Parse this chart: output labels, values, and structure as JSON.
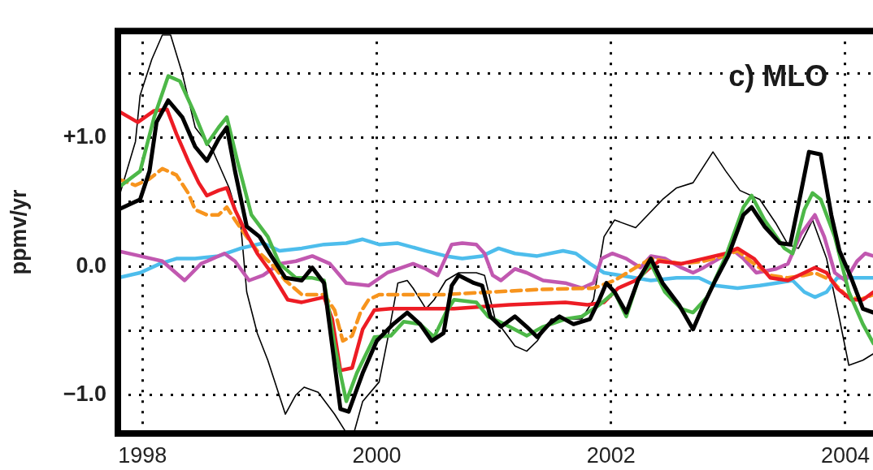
{
  "chart_data": {
    "type": "line",
    "title": "c) MLO",
    "ylabel": "ppmv/yr",
    "xlim": [
      1997.79,
      2004.24
    ],
    "ylim": [
      -1.3,
      1.83
    ],
    "xticks": [
      1998,
      2000,
      2002,
      2004
    ],
    "yticks": [
      {
        "value": -1,
        "label": "−1.0"
      },
      {
        "value": -0.5,
        "label": null
      },
      {
        "value": 0,
        "label": "0.0"
      },
      {
        "value": 0.5,
        "label": null
      },
      {
        "value": 1,
        "label": "+1.0"
      },
      {
        "value": 1.5,
        "label": null
      }
    ],
    "grid": true,
    "series": [
      {
        "color": "#000000",
        "x": [
          1997.81,
          1997.94,
          1997.98,
          1998.08,
          1998.17,
          1998.24,
          1998.34,
          1998.45,
          1998.6,
          1998.74,
          1998.84,
          1998.89,
          1998.98,
          1999.07,
          1999.22,
          1999.31,
          1999.38,
          1999.5,
          1999.64,
          1999.73,
          1999.81,
          1999.88,
          2000.02,
          2000.09,
          2000.18,
          2000.26,
          2000.31,
          2000.42,
          2000.49,
          2000.59,
          2000.7,
          2000.85,
          2000.92,
          2001.01,
          2001.18,
          2001.28,
          2001.37,
          2001.49,
          2001.75,
          2001.85,
          2001.94,
          2002.03,
          2002.21,
          2002.44,
          2002.56,
          2002.7,
          2002.87,
          2002.98,
          2003.1,
          2003.27,
          2003.41,
          2003.51,
          2003.6,
          2003.72,
          2003.84,
          2003.95,
          2004.03,
          2004.15,
          2004.24
        ],
        "values": [
          0.57,
          0.97,
          1.33,
          1.61,
          1.8,
          1.8,
          1.5,
          1.08,
          0.9,
          0.61,
          0.31,
          -0.2,
          -0.52,
          -0.73,
          -1.15,
          -1.0,
          -0.94,
          -0.98,
          -1.15,
          -1.28,
          -1.28,
          -1.05,
          -0.9,
          -0.58,
          -0.13,
          -0.11,
          -0.17,
          -0.33,
          -0.26,
          -0.11,
          -0.05,
          -0.05,
          -0.07,
          -0.41,
          -0.62,
          -0.66,
          -0.58,
          -0.41,
          -0.41,
          -0.26,
          0.23,
          0.36,
          0.3,
          0.52,
          0.61,
          0.65,
          0.89,
          0.74,
          0.59,
          0.52,
          0.33,
          0.17,
          0.14,
          0.36,
          0.06,
          -0.41,
          -0.77,
          -0.73,
          -0.68
        ]
      },
      {
        "color": "#4dbdec",
        "x": [
          1997.79,
          1997.98,
          1998.15,
          1998.29,
          1998.45,
          1998.65,
          1998.84,
          1999.03,
          1999.17,
          1999.36,
          1999.55,
          1999.74,
          1999.88,
          2000.02,
          2000.18,
          2000.42,
          2000.59,
          2000.73,
          2000.9,
          2001.04,
          2001.18,
          2001.37,
          2001.59,
          2001.7,
          2001.82,
          2001.94,
          2002.08,
          2002.34,
          2002.56,
          2002.75,
          2002.89,
          2003.08,
          2003.27,
          2003.41,
          2003.55,
          2003.65,
          2003.74,
          2003.84,
          2003.93,
          2004.24
        ],
        "values": [
          -0.09,
          -0.05,
          0.02,
          0.06,
          0.06,
          0.08,
          0.14,
          0.18,
          0.12,
          0.14,
          0.17,
          0.18,
          0.21,
          0.17,
          0.18,
          0.12,
          0.08,
          0.06,
          0.08,
          0.14,
          0.1,
          0.08,
          0.12,
          0.1,
          0.02,
          -0.05,
          -0.07,
          -0.11,
          -0.09,
          -0.09,
          -0.15,
          -0.17,
          -0.15,
          -0.13,
          -0.11,
          -0.2,
          -0.24,
          -0.2,
          -0.09,
          -0.09
        ]
      },
      {
        "color": "#c158b0",
        "x": [
          1997.79,
          1997.98,
          1998.17,
          1998.36,
          1998.5,
          1998.7,
          1998.79,
          1998.91,
          1999.03,
          1999.17,
          1999.31,
          1999.45,
          1999.6,
          1999.74,
          1999.93,
          2000.09,
          2000.31,
          2000.42,
          2000.52,
          2000.64,
          2000.73,
          2000.85,
          2000.92,
          2000.99,
          2001.06,
          2001.18,
          2001.28,
          2001.42,
          2001.61,
          2001.75,
          2001.85,
          2001.92,
          2002.01,
          2002.13,
          2002.25,
          2002.34,
          2002.46,
          2002.6,
          2002.7,
          2002.79,
          2002.96,
          2003.05,
          2003.13,
          2003.24,
          2003.41,
          2003.51,
          2003.62,
          2003.74,
          2003.82,
          2003.91,
          2004.0,
          2004.1,
          2004.17,
          2004.24
        ],
        "values": [
          0.12,
          0.08,
          0.04,
          -0.11,
          0.02,
          0.1,
          0.04,
          -0.11,
          -0.07,
          0.02,
          0.04,
          0.08,
          0.02,
          -0.13,
          -0.15,
          -0.05,
          0.02,
          -0.02,
          -0.07,
          0.17,
          0.18,
          0.17,
          0.1,
          -0.07,
          -0.11,
          -0.02,
          -0.05,
          -0.11,
          -0.13,
          -0.17,
          -0.13,
          0.06,
          0.1,
          0.06,
          -0.01,
          0.08,
          0.06,
          -0.01,
          -0.05,
          -0.01,
          0.08,
          0.12,
          0.06,
          -0.05,
          -0.02,
          0.02,
          0.25,
          0.4,
          0.23,
          -0.05,
          -0.11,
          0.04,
          0.1,
          0.08
        ]
      },
      {
        "color": "#f7941d",
        "line_style": "dashed",
        "x": [
          1997.79,
          1997.94,
          1998.06,
          1998.17,
          1998.29,
          1998.39,
          1998.45,
          1998.55,
          1998.65,
          1998.72,
          1998.79,
          1998.89,
          1998.98,
          1999.1,
          1999.22,
          1999.36,
          1999.55,
          1999.64,
          1999.71,
          1999.79,
          1999.86,
          1999.93,
          2000.02,
          2000.57,
          2000.98,
          2001.39,
          2001.85,
          2002.03,
          2002.21,
          2002.34,
          2002.6,
          2002.79,
          2002.96,
          2003.08,
          2003.22,
          2003.36,
          2003.51,
          2003.65,
          2003.74,
          2003.88,
          2004.0,
          2004.12,
          2004.24
        ],
        "values": [
          0.68,
          0.63,
          0.68,
          0.76,
          0.71,
          0.57,
          0.44,
          0.4,
          0.4,
          0.46,
          0.36,
          0.23,
          0.12,
          0.02,
          -0.11,
          -0.22,
          -0.22,
          -0.34,
          -0.58,
          -0.54,
          -0.36,
          -0.26,
          -0.22,
          -0.22,
          -0.2,
          -0.18,
          -0.17,
          -0.11,
          -0.01,
          0.06,
          0.02,
          0.04,
          0.08,
          0.12,
          0.02,
          -0.07,
          -0.09,
          -0.07,
          -0.05,
          -0.11,
          -0.22,
          -0.26,
          -0.22
        ]
      },
      {
        "color": "#ed1c24",
        "x": [
          1997.79,
          1997.96,
          1998.1,
          1998.21,
          1998.29,
          1998.39,
          1998.48,
          1998.55,
          1998.65,
          1998.72,
          1998.79,
          1998.89,
          1998.98,
          1999.1,
          1999.24,
          1999.36,
          1999.55,
          1999.62,
          1999.69,
          1999.79,
          1999.88,
          1999.98,
          2000.12,
          2000.66,
          2001.13,
          2001.61,
          2001.8,
          2001.94,
          2002.06,
          2002.21,
          2002.32,
          2002.41,
          2002.6,
          2002.79,
          2002.98,
          2003.08,
          2003.22,
          2003.36,
          2003.51,
          2003.65,
          2003.74,
          2003.84,
          2003.93,
          2004.05,
          2004.15,
          2004.24
        ],
        "values": [
          1.21,
          1.12,
          1.21,
          1.22,
          1.03,
          0.82,
          0.65,
          0.55,
          0.59,
          0.61,
          0.44,
          0.25,
          0.1,
          -0.05,
          -0.26,
          -0.28,
          -0.24,
          -0.41,
          -0.81,
          -0.79,
          -0.49,
          -0.34,
          -0.33,
          -0.33,
          -0.3,
          -0.28,
          -0.3,
          -0.28,
          -0.17,
          -0.11,
          -0.02,
          0.04,
          0.02,
          0.06,
          0.1,
          0.14,
          0.06,
          -0.09,
          -0.11,
          -0.05,
          -0.01,
          -0.05,
          -0.17,
          -0.26,
          -0.26,
          -0.2
        ]
      },
      {
        "color": "#4db848",
        "x": [
          1997.79,
          1997.98,
          1998.1,
          1998.22,
          1998.32,
          1998.43,
          1998.55,
          1998.65,
          1998.72,
          1998.81,
          1998.93,
          1999.07,
          1999.17,
          1999.31,
          1999.45,
          1999.55,
          1999.64,
          1999.74,
          1999.83,
          1999.98,
          2000.12,
          2000.23,
          2000.37,
          2000.49,
          2000.59,
          2000.66,
          2000.85,
          2000.95,
          2001.09,
          2001.28,
          2001.42,
          2001.61,
          2001.75,
          2001.9,
          2002.03,
          2002.13,
          2002.23,
          2002.34,
          2002.46,
          2002.6,
          2002.7,
          2002.82,
          2002.98,
          2003.13,
          2003.2,
          2003.31,
          2003.48,
          2003.55,
          2003.65,
          2003.72,
          2003.79,
          2003.91,
          2004.03,
          2004.15,
          2004.24
        ],
        "values": [
          0.61,
          0.74,
          1.16,
          1.48,
          1.44,
          1.22,
          0.95,
          1.08,
          1.16,
          0.82,
          0.4,
          0.23,
          0.02,
          -0.09,
          -0.09,
          -0.11,
          -0.62,
          -1.05,
          -0.83,
          -0.55,
          -0.54,
          -0.43,
          -0.45,
          -0.55,
          -0.36,
          -0.26,
          -0.28,
          -0.39,
          -0.45,
          -0.54,
          -0.47,
          -0.41,
          -0.39,
          -0.3,
          -0.2,
          -0.39,
          -0.11,
          0.02,
          -0.2,
          -0.33,
          -0.36,
          -0.24,
          0.08,
          0.46,
          0.55,
          0.36,
          0.14,
          0.1,
          0.44,
          0.57,
          0.52,
          0.23,
          -0.2,
          -0.45,
          -0.6
        ]
      },
      {
        "color": "#000000",
        "x": [
          1997.79,
          1997.98,
          1998.06,
          1998.12,
          1998.22,
          1998.34,
          1998.45,
          1998.55,
          1998.65,
          1998.72,
          1998.79,
          1998.89,
          1999.0,
          1999.1,
          1999.22,
          1999.36,
          1999.45,
          1999.55,
          1999.62,
          1999.69,
          1999.76,
          1999.88,
          2000.0,
          2000.14,
          2000.26,
          2000.37,
          2000.47,
          2000.57,
          2000.64,
          2000.7,
          2000.83,
          2000.9,
          2000.97,
          2001.06,
          2001.18,
          2001.28,
          2001.37,
          2001.47,
          2001.56,
          2001.68,
          2001.82,
          2001.9,
          2001.96,
          2002.03,
          2002.13,
          2002.23,
          2002.34,
          2002.44,
          2002.58,
          2002.7,
          2002.79,
          2002.89,
          2003.0,
          2003.13,
          2003.2,
          2003.31,
          2003.44,
          2003.53,
          2003.62,
          2003.69,
          2003.79,
          2003.88,
          2003.95,
          2004.05,
          2004.15,
          2004.24
        ],
        "values": [
          0.44,
          0.52,
          0.74,
          1.12,
          1.29,
          1.16,
          0.93,
          0.82,
          0.99,
          1.08,
          0.74,
          0.31,
          0.23,
          0.08,
          -0.09,
          -0.11,
          -0.01,
          -0.13,
          -0.62,
          -1.11,
          -1.13,
          -0.83,
          -0.58,
          -0.45,
          -0.36,
          -0.45,
          -0.58,
          -0.52,
          -0.15,
          -0.07,
          -0.13,
          -0.15,
          -0.39,
          -0.47,
          -0.39,
          -0.47,
          -0.55,
          -0.45,
          -0.39,
          -0.45,
          -0.41,
          -0.26,
          -0.13,
          -0.2,
          -0.36,
          -0.11,
          0.06,
          -0.13,
          -0.3,
          -0.49,
          -0.3,
          -0.11,
          0.08,
          0.4,
          0.46,
          0.31,
          0.18,
          0.17,
          0.57,
          0.89,
          0.87,
          0.4,
          0.12,
          -0.09,
          -0.33,
          -0.36
        ]
      }
    ]
  }
}
